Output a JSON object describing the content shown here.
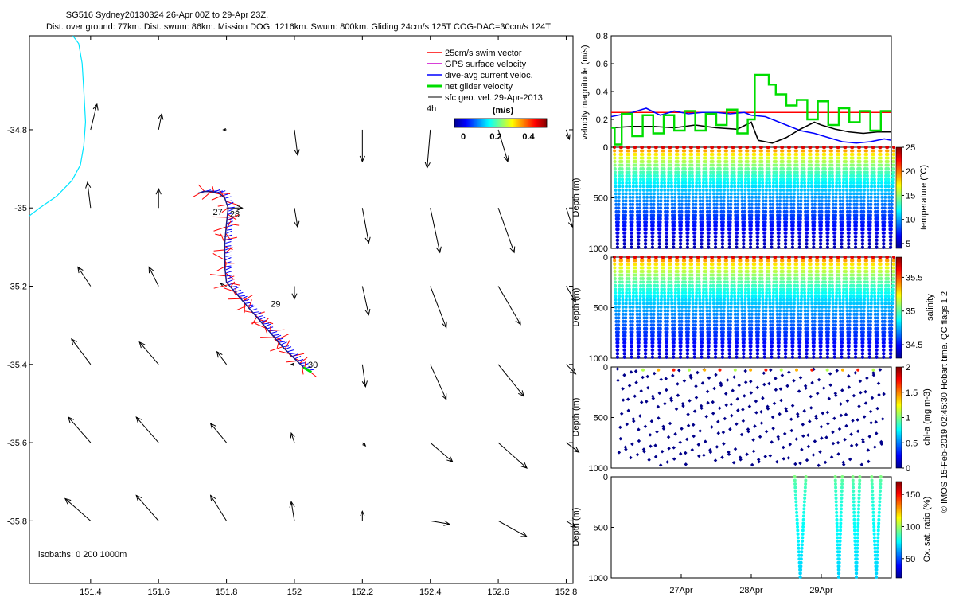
{
  "header": {
    "title_line1": "SG516 Sydney20130324 26-Apr 00Z to 29-Apr 23Z.",
    "title_line2": "Dist. over ground: 77km. Dist. swum: 86km. Mission DOG: 1216km. Swum: 800km. Gliding 24cm/s 125T COG-DAC=30cm/s 124T"
  },
  "credit": "© IMOS 15-Feb-2019 02:45:30 Hobart time. QC flags 1  2",
  "chart_data": [
    {
      "type": "scatter",
      "id": "map",
      "xlim": [
        151.22,
        152.82
      ],
      "ylim": [
        -35.96,
        -34.56
      ],
      "xticks": [
        151.4,
        151.6,
        151.8,
        152.0,
        152.2,
        152.4,
        152.6,
        152.8
      ],
      "xtick_labels": [
        "151.4",
        "151.6",
        "151.8",
        "152",
        "152.2",
        "152.4",
        "152.6",
        "152.8"
      ],
      "yticks": [
        -34.8,
        -35.0,
        -35.2,
        -35.4,
        -35.6,
        -35.8
      ],
      "ytick_labels": [
        "-34.8",
        "-35",
        "-35.2",
        "-35.4",
        "-35.6",
        "-35.8"
      ],
      "legend": {
        "position": "top-right",
        "entries": [
          {
            "label": "25cm/s swim vector",
            "color": "#ff0000"
          },
          {
            "label": "GPS surface velocity",
            "color": "#cc00cc"
          },
          {
            "label": "dive-avg current veloc.",
            "color": "#0000ff"
          },
          {
            "label": "net glider velocity",
            "color": "#00dd00"
          },
          {
            "label": "sfc geo. vel. 29-Apr-2013",
            "color": "#000000"
          }
        ],
        "extra": "4h"
      },
      "colorbar": {
        "title": "(m/s)",
        "ticks": [
          "0",
          "0.2",
          "0.4"
        ],
        "range": [
          0,
          0.5
        ]
      },
      "isobaths_label": "isobaths: 0   200  1000m",
      "track": [
        [
          151.717,
          -34.962
        ],
        [
          151.735,
          -34.958
        ],
        [
          151.755,
          -34.958
        ],
        [
          151.778,
          -34.962
        ],
        [
          151.795,
          -34.975
        ],
        [
          151.805,
          -35.0
        ],
        [
          151.8,
          -35.04
        ],
        [
          151.795,
          -35.09
        ],
        [
          151.795,
          -35.15
        ],
        [
          151.8,
          -35.19
        ],
        [
          151.83,
          -35.22
        ],
        [
          151.86,
          -35.25
        ],
        [
          151.895,
          -35.285
        ],
        [
          151.93,
          -35.32
        ],
        [
          151.965,
          -35.355
        ],
        [
          152.0,
          -35.385
        ],
        [
          152.03,
          -35.41
        ],
        [
          152.05,
          -35.42
        ]
      ],
      "day_labels": [
        {
          "label": "27",
          "lon": 151.76,
          "lat": -35.01
        },
        {
          "label": "28",
          "lon": 151.81,
          "lat": -35.015
        },
        {
          "label": "29",
          "lon": 151.93,
          "lat": -35.245
        },
        {
          "label": "30",
          "lon": 152.04,
          "lat": -35.4
        }
      ],
      "coastline": [
        [
          151.348,
          -34.56
        ],
        [
          151.365,
          -34.58
        ],
        [
          151.375,
          -34.63
        ],
        [
          151.38,
          -34.7
        ],
        [
          151.385,
          -34.78
        ],
        [
          151.38,
          -34.84
        ],
        [
          151.37,
          -34.89
        ],
        [
          151.345,
          -34.93
        ],
        [
          151.3,
          -34.97
        ],
        [
          151.25,
          -35.0
        ],
        [
          151.22,
          -35.02
        ]
      ],
      "current_vectors": [
        [
          151.4,
          -34.8,
          0.02,
          0.08
        ],
        [
          151.6,
          -34.8,
          0.01,
          0.05
        ],
        [
          151.8,
          -34.8,
          -0.01,
          0.0
        ],
        [
          152.0,
          -34.8,
          0.01,
          -0.08
        ],
        [
          152.2,
          -34.8,
          0.0,
          -0.1
        ],
        [
          152.4,
          -34.8,
          -0.01,
          -0.12
        ],
        [
          152.6,
          -34.8,
          0.03,
          -0.1
        ],
        [
          152.8,
          -34.8,
          0.01,
          -0.03
        ],
        [
          151.4,
          -35.0,
          -0.01,
          0.08
        ],
        [
          151.6,
          -35.0,
          0.0,
          0.06
        ],
        [
          151.8,
          -35.0,
          0.05,
          0.0
        ],
        [
          152.0,
          -35.0,
          0.01,
          -0.06
        ],
        [
          152.2,
          -35.0,
          0.02,
          -0.11
        ],
        [
          152.4,
          -35.0,
          0.03,
          -0.14
        ],
        [
          152.6,
          -35.0,
          0.05,
          -0.14
        ],
        [
          152.8,
          -35.0,
          0.02,
          -0.06
        ],
        [
          151.4,
          -35.2,
          -0.04,
          0.06
        ],
        [
          151.6,
          -35.2,
          -0.03,
          0.06
        ],
        [
          151.8,
          -35.2,
          -0.02,
          0.01
        ],
        [
          152.0,
          -35.2,
          0.0,
          -0.04
        ],
        [
          152.2,
          -35.2,
          0.02,
          -0.09
        ],
        [
          152.4,
          -35.2,
          0.05,
          -0.13
        ],
        [
          152.6,
          -35.2,
          0.07,
          -0.12
        ],
        [
          152.8,
          -35.2,
          0.03,
          -0.05
        ],
        [
          151.4,
          -35.4,
          -0.06,
          0.08
        ],
        [
          151.6,
          -35.4,
          -0.06,
          0.07
        ],
        [
          151.8,
          -35.4,
          -0.03,
          0.04
        ],
        [
          152.0,
          -35.4,
          -0.01,
          0.0
        ],
        [
          152.2,
          -35.4,
          0.01,
          -0.07
        ],
        [
          152.4,
          -35.4,
          0.05,
          -0.11
        ],
        [
          152.6,
          -35.4,
          0.08,
          -0.1
        ],
        [
          152.8,
          -35.4,
          0.03,
          -0.03
        ],
        [
          151.4,
          -35.6,
          -0.07,
          0.08
        ],
        [
          151.6,
          -35.6,
          -0.07,
          0.08
        ],
        [
          151.8,
          -35.6,
          -0.05,
          0.06
        ],
        [
          152.0,
          -35.6,
          -0.01,
          0.03
        ],
        [
          152.2,
          -35.6,
          0.01,
          -0.01
        ],
        [
          152.4,
          -35.6,
          0.07,
          -0.06
        ],
        [
          152.6,
          -35.6,
          0.09,
          -0.08
        ],
        [
          152.8,
          -35.6,
          0.04,
          -0.03
        ],
        [
          151.4,
          -35.8,
          -0.08,
          0.07
        ],
        [
          151.6,
          -35.8,
          -0.07,
          0.08
        ],
        [
          151.8,
          -35.8,
          -0.05,
          0.08
        ],
        [
          152.0,
          -35.8,
          -0.01,
          0.06
        ],
        [
          152.2,
          -35.8,
          0.0,
          0.03
        ],
        [
          152.4,
          -35.8,
          0.06,
          -0.01
        ],
        [
          152.6,
          -35.8,
          0.09,
          -0.05
        ],
        [
          152.8,
          -35.8,
          0.03,
          -0.02
        ]
      ]
    },
    {
      "type": "line",
      "id": "velocity",
      "ylabel": "velocity magnitude (m/s)",
      "xlim": [
        26.0,
        30.0
      ],
      "ylim": [
        0,
        0.8
      ],
      "yticks": [
        "0",
        "0.2",
        "0.4",
        "0.6",
        "0.8"
      ],
      "series": [
        {
          "color": "#ff0000",
          "x": [
            26.0,
            30.0
          ],
          "y": [
            0.25,
            0.25
          ]
        },
        {
          "color": "#0000ff",
          "x": [
            26.0,
            26.3,
            26.5,
            26.7,
            26.9,
            27.1,
            27.3,
            27.5,
            27.7,
            27.9,
            28.0,
            28.2,
            28.3,
            28.5,
            28.7,
            28.9,
            29.1,
            29.3,
            29.5,
            29.7,
            29.9,
            30.0
          ],
          "y": [
            0.22,
            0.25,
            0.28,
            0.23,
            0.26,
            0.24,
            0.25,
            0.25,
            0.24,
            0.25,
            0.23,
            0.22,
            0.2,
            0.16,
            0.12,
            0.1,
            0.07,
            0.04,
            0.03,
            0.04,
            0.06,
            0.05
          ]
        },
        {
          "color": "#000000",
          "x": [
            26.0,
            26.3,
            26.6,
            26.9,
            27.2,
            27.5,
            27.8,
            28.0,
            28.1,
            28.3,
            28.5,
            28.7,
            28.9,
            29.0,
            29.2,
            29.4,
            29.6,
            29.8,
            30.0
          ],
          "y": [
            0.14,
            0.15,
            0.15,
            0.14,
            0.16,
            0.14,
            0.13,
            0.18,
            0.05,
            0.03,
            0.07,
            0.13,
            0.18,
            0.16,
            0.13,
            0.11,
            0.1,
            0.11,
            0.11
          ]
        },
        {
          "color": "#00dd00",
          "x": [
            26.0,
            26.05,
            26.05,
            26.15,
            26.15,
            26.3,
            26.3,
            26.45,
            26.45,
            26.6,
            26.6,
            26.75,
            26.75,
            26.9,
            26.9,
            27.05,
            27.05,
            27.2,
            27.2,
            27.35,
            27.35,
            27.5,
            27.5,
            27.65,
            27.65,
            27.8,
            27.8,
            27.95,
            27.95,
            28.05,
            28.05,
            28.25,
            28.25,
            28.35,
            28.35,
            28.5,
            28.5,
            28.65,
            28.65,
            28.8,
            28.8,
            28.95,
            28.95,
            29.1,
            29.1,
            29.25,
            29.25,
            29.4,
            29.4,
            29.55,
            29.55,
            29.7,
            29.7,
            29.85,
            29.85,
            30.0
          ],
          "y": [
            0.14,
            0.14,
            0.02,
            0.02,
            0.24,
            0.24,
            0.08,
            0.08,
            0.23,
            0.23,
            0.1,
            0.1,
            0.23,
            0.23,
            0.12,
            0.12,
            0.26,
            0.26,
            0.12,
            0.12,
            0.24,
            0.24,
            0.16,
            0.16,
            0.27,
            0.27,
            0.1,
            0.1,
            0.2,
            0.2,
            0.52,
            0.52,
            0.45,
            0.45,
            0.38,
            0.38,
            0.3,
            0.3,
            0.34,
            0.34,
            0.2,
            0.2,
            0.33,
            0.33,
            0.16,
            0.16,
            0.28,
            0.28,
            0.18,
            0.18,
            0.26,
            0.26,
            0.12,
            0.12,
            0.26,
            0.26
          ]
        }
      ]
    },
    {
      "type": "scatter",
      "id": "temperature",
      "ylabel": "Depth (m)",
      "colorbar_label": "temperature (°C)",
      "ylim": [
        1000,
        0
      ],
      "yticks": [
        "0",
        "500",
        "1000"
      ],
      "clim": [
        4,
        25
      ],
      "cticks": [
        "5",
        "10",
        "15",
        "20",
        "25"
      ],
      "ctick_values": [
        5,
        10,
        15,
        20,
        25
      ],
      "dives": 40,
      "max_depth": 990,
      "surface_value": 23,
      "deep_value": 5
    },
    {
      "type": "scatter",
      "id": "salinity",
      "ylabel": "Depth (m)",
      "colorbar_label": "salinity",
      "ylim": [
        1000,
        0
      ],
      "yticks": [
        "0",
        "500",
        "1000"
      ],
      "clim": [
        34.3,
        35.8
      ],
      "cticks": [
        "34.5",
        "35",
        "35.5"
      ],
      "ctick_values": [
        34.5,
        35,
        35.5
      ],
      "dives": 40,
      "max_depth": 990,
      "surface_value": 35.65,
      "deep_value": 34.42
    },
    {
      "type": "scatter",
      "id": "chla",
      "ylabel": "Depth (m)",
      "colorbar_label": "chl-a (mg m-3)",
      "ylim": [
        1000,
        0
      ],
      "yticks": [
        "0",
        "500",
        "1000"
      ],
      "clim": [
        0,
        2
      ],
      "cticks": [
        "0",
        "0.5",
        "1",
        "1.5",
        "2"
      ],
      "ctick_values": [
        0,
        0.5,
        1,
        1.5,
        2
      ],
      "dives": 40,
      "max_depth": 990,
      "surface_value": 1.1,
      "deep_value": 0.02,
      "sparse": true
    },
    {
      "type": "scatter",
      "id": "oxygen",
      "ylabel": "Depth (m)",
      "colorbar_label": "Ox. sat. ratio (%)",
      "ylim": [
        1000,
        0
      ],
      "yticks": [
        "0",
        "500",
        "1000"
      ],
      "clim": [
        20,
        170
      ],
      "cticks": [
        "50",
        "100",
        "150"
      ],
      "ctick_values": [
        50,
        100,
        150
      ],
      "dive_spans": [
        [
          28.62,
          28.78
        ],
        [
          29.2,
          29.3
        ],
        [
          29.45,
          29.55
        ],
        [
          29.72,
          29.85
        ]
      ],
      "max_depth": 990,
      "surface_value": 95,
      "deep_value": 70,
      "xticks": [
        27,
        28,
        29
      ],
      "xtick_labels": [
        "27Apr",
        "28Apr",
        "29Apr"
      ]
    }
  ]
}
